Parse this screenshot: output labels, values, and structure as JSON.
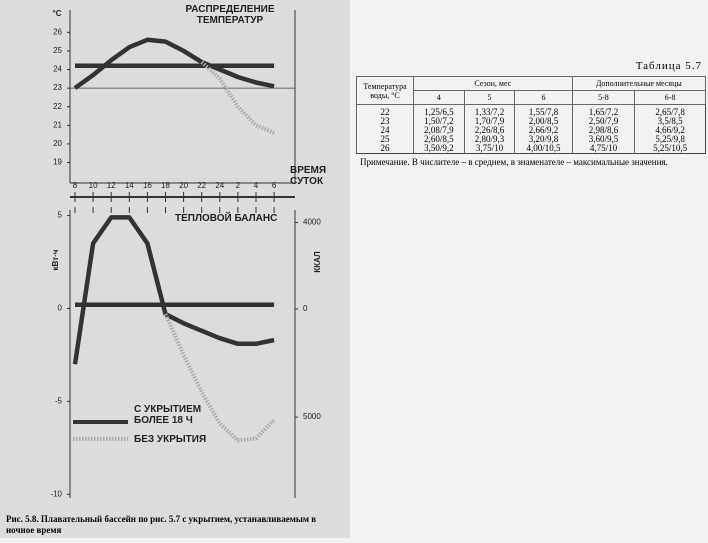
{
  "figure": {
    "charts": [
      {
        "type": "line",
        "title": "РАСПРЕДЕЛЕНИЕ ТЕМПЕРАТУР",
        "ylabel": "°C",
        "xlabel": "ВРЕМЯ СУТОК",
        "categories": [
          "8",
          "10",
          "12",
          "14",
          "16",
          "18",
          "20",
          "22",
          "24",
          "2",
          "4",
          "6"
        ],
        "ylim": [
          17.9,
          27.2
        ],
        "yticks": [
          19,
          20,
          21,
          22,
          23,
          24,
          25,
          26
        ],
        "reference_line": 23,
        "series": [
          {
            "color": "#333333",
            "style": "solid",
            "values": [
              24.2,
              24.2,
              24.2,
              24.2,
              24.2,
              24.2,
              24.2,
              24.2,
              24.2,
              24.2,
              24.2,
              24.2
            ]
          },
          {
            "color": "#333333",
            "style": "solid",
            "values": [
              23.0,
              23.7,
              24.5,
              25.2,
              25.6,
              25.5,
              25.0,
              24.4,
              24.0,
              23.6,
              23.3,
              23.1
            ]
          },
          {
            "color": "#aaaaaa",
            "style": "dotted",
            "values": [
              null,
              null,
              null,
              null,
              null,
              null,
              null,
              24.4,
              23.5,
              22.0,
              21.0,
              20.6
            ]
          }
        ]
      },
      {
        "type": "line",
        "title": "ТЕПЛОВОЙ БАЛАНС",
        "ylabel": "кВт·ч",
        "y2label": "ККАЛ",
        "categories": [
          "8",
          "10",
          "12",
          "14",
          "16",
          "18",
          "20",
          "22",
          "24",
          "2",
          "4",
          "6"
        ],
        "ylim": [
          -10.2,
          5.3
        ],
        "yticks": [
          5,
          0,
          -5,
          -10
        ],
        "y2lim": [
          -8738,
          4575
        ],
        "y2ticks": [
          4000,
          0,
          {
            "value": -5000,
            "label": "5000"
          }
        ],
        "series": [
          {
            "color": "#333333",
            "style": "solid",
            "values": [
              0.2,
              0.2,
              0.2,
              0.2,
              0.2,
              0.2,
              0.2,
              0.2,
              0.2,
              0.2,
              0.2,
              0.2
            ]
          },
          {
            "name": "С УКРЫТИЕМ БОЛЕЕ 18 Ч",
            "color": "#333333",
            "style": "solid",
            "values": [
              -3.0,
              3.5,
              4.9,
              4.9,
              3.5,
              -0.3,
              -0.8,
              -1.2,
              -1.6,
              -1.9,
              -1.9,
              -1.7
            ]
          },
          {
            "name": "БЕЗ УКРЫТИЯ",
            "color": "#aaaaaa",
            "style": "dotted",
            "values": [
              null,
              null,
              null,
              null,
              null,
              -0.3,
              -2.5,
              -4.5,
              -6.2,
              -7.1,
              -7.0,
              -6.0
            ]
          }
        ]
      }
    ],
    "caption": "Рис. 5.8. Плавательный бассейн по рис. 5.7 с укрытием, устанавливаемым в ночное время"
  },
  "table": {
    "title": "Таблица 5.7",
    "header": [
      "Температура воды, °С",
      "Сезон, мес",
      "Дополнительные месяцы"
    ],
    "subheader": [
      "4",
      "5",
      "6",
      "5-8",
      "6-8"
    ],
    "rows": [
      [
        22,
        "1,25/6,5",
        "1,33/7,2",
        "1,55/7,8",
        "1,65/7,2",
        "2,65/7,8"
      ],
      [
        23,
        "1,50/7,2",
        "1,70/7,9",
        "2,00/8,5",
        "2,50/7,9",
        "3,5/8,5"
      ],
      [
        24,
        "2,08/7,9",
        "2,26/8,6",
        "2,66/9,2",
        "2,98/8,6",
        "4,66/9,2"
      ],
      [
        25,
        "2,60/8,5",
        "2,80/9,3",
        "3,20/9,8",
        "3,60/9,5",
        "5,25/9,8"
      ],
      [
        26,
        "3,50/9,2",
        "3,75/10",
        "4,00/10,5",
        "4,75/10",
        "5,25/10,5"
      ]
    ],
    "note": "Примечание. В числителе – в среднем, в знаменателе – максимальные значения."
  }
}
